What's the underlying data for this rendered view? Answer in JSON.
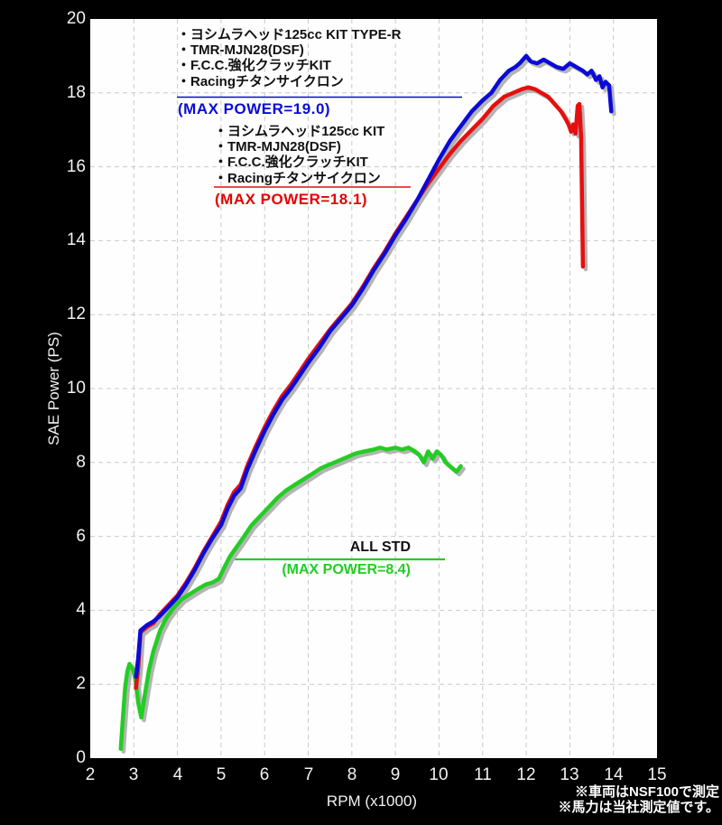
{
  "colors": {
    "background": "#000000",
    "plot_background": "#fefefe",
    "grid": "#c9c9c9",
    "shadow": "#b4b4b4",
    "blue": "#0a0ad7",
    "red": "#e60f0f",
    "green": "#23cd23",
    "tick_text": "#f2f2f2",
    "legend_text": "#111111"
  },
  "axes": {
    "x_title": "RPM (x1000)",
    "y_title": "SAE Power (PS)"
  },
  "legend_type_r": {
    "lines": [
      "・ヨシムラヘッド125cc KIT TYPE-R",
      "・TMR-MJN28(DSF)",
      "・F.C.C.強化クラッチKIT",
      "・Racingチタンサイクロン"
    ],
    "max_label": "(MAX POWER=19.0)"
  },
  "legend_kit": {
    "lines": [
      "・ヨシムラヘッド125cc KIT",
      "・TMR-MJN28(DSF)",
      "・F.C.C.強化クラッチKIT",
      "・Racingチタンサイクロン"
    ],
    "max_label": "(MAX POWER=18.1)"
  },
  "legend_std": {
    "title": "ALL STD",
    "max_label": "(MAX POWER=8.4)"
  },
  "notes": {
    "line1": "※車両はNSF100で測定",
    "line2": "※馬力は当社測定値です。"
  },
  "chart_data": {
    "type": "line",
    "xlabel": "RPM (x1000)",
    "ylabel": "SAE Power (PS)",
    "xlim": [
      2,
      15
    ],
    "ylim": [
      0,
      20
    ],
    "x_ticks": [
      2,
      3,
      4,
      5,
      6,
      7,
      8,
      9,
      10,
      11,
      12,
      13,
      14,
      15
    ],
    "y_ticks": [
      0,
      2,
      4,
      6,
      8,
      10,
      12,
      14,
      16,
      18,
      20
    ],
    "grid": "dashed",
    "legend_position": "inline-annotations",
    "series": [
      {
        "name": "ヨシムラヘッド125cc KIT TYPE-R / TMR-MJN28(DSF) / F.C.C.強化クラッチKIT / Racingチタンサイクロン",
        "color": "#0a0ad7",
        "max_power": 19.0,
        "points": [
          [
            3.05,
            2.2
          ],
          [
            3.1,
            2.7
          ],
          [
            3.15,
            3.45
          ],
          [
            3.3,
            3.6
          ],
          [
            3.45,
            3.7
          ],
          [
            3.6,
            3.85
          ],
          [
            3.8,
            4.1
          ],
          [
            4.0,
            4.35
          ],
          [
            4.2,
            4.7
          ],
          [
            4.4,
            5.1
          ],
          [
            4.6,
            5.55
          ],
          [
            4.8,
            5.95
          ],
          [
            5.0,
            6.3
          ],
          [
            5.15,
            6.75
          ],
          [
            5.3,
            7.1
          ],
          [
            5.45,
            7.3
          ],
          [
            5.6,
            7.8
          ],
          [
            5.8,
            8.35
          ],
          [
            6.0,
            8.85
          ],
          [
            6.2,
            9.3
          ],
          [
            6.4,
            9.7
          ],
          [
            6.6,
            10.0
          ],
          [
            6.8,
            10.35
          ],
          [
            7.0,
            10.7
          ],
          [
            7.25,
            11.1
          ],
          [
            7.5,
            11.55
          ],
          [
            7.75,
            11.9
          ],
          [
            8.0,
            12.25
          ],
          [
            8.25,
            12.7
          ],
          [
            8.5,
            13.2
          ],
          [
            8.75,
            13.65
          ],
          [
            9.0,
            14.15
          ],
          [
            9.25,
            14.6
          ],
          [
            9.5,
            15.1
          ],
          [
            9.75,
            15.65
          ],
          [
            10.0,
            16.2
          ],
          [
            10.25,
            16.7
          ],
          [
            10.5,
            17.1
          ],
          [
            10.75,
            17.5
          ],
          [
            11.0,
            17.8
          ],
          [
            11.2,
            18.0
          ],
          [
            11.4,
            18.35
          ],
          [
            11.6,
            18.6
          ],
          [
            11.75,
            18.7
          ],
          [
            11.85,
            18.8
          ],
          [
            12.0,
            19.0
          ],
          [
            12.1,
            18.85
          ],
          [
            12.25,
            18.8
          ],
          [
            12.4,
            18.9
          ],
          [
            12.55,
            18.8
          ],
          [
            12.7,
            18.7
          ],
          [
            12.85,
            18.65
          ],
          [
            13.0,
            18.8
          ],
          [
            13.15,
            18.7
          ],
          [
            13.3,
            18.6
          ],
          [
            13.4,
            18.5
          ],
          [
            13.5,
            18.6
          ],
          [
            13.6,
            18.35
          ],
          [
            13.68,
            18.45
          ],
          [
            13.75,
            18.15
          ],
          [
            13.82,
            18.3
          ],
          [
            13.9,
            18.2
          ],
          [
            13.95,
            17.5
          ]
        ]
      },
      {
        "name": "ヨシムラヘッド125cc KIT / TMR-MJN28(DSF) / F.C.C.強化クラッチKIT / Racingチタンサイクロン",
        "color": "#e60f0f",
        "max_power": 18.1,
        "points": [
          [
            3.05,
            1.9
          ],
          [
            3.1,
            2.45
          ],
          [
            3.15,
            3.4
          ],
          [
            3.3,
            3.55
          ],
          [
            3.45,
            3.65
          ],
          [
            3.6,
            3.9
          ],
          [
            3.8,
            4.15
          ],
          [
            4.0,
            4.4
          ],
          [
            4.2,
            4.75
          ],
          [
            4.4,
            5.15
          ],
          [
            4.6,
            5.6
          ],
          [
            4.8,
            6.0
          ],
          [
            5.0,
            6.4
          ],
          [
            5.15,
            6.85
          ],
          [
            5.3,
            7.2
          ],
          [
            5.45,
            7.4
          ],
          [
            5.6,
            7.9
          ],
          [
            5.8,
            8.45
          ],
          [
            6.0,
            8.95
          ],
          [
            6.2,
            9.4
          ],
          [
            6.4,
            9.8
          ],
          [
            6.6,
            10.1
          ],
          [
            6.8,
            10.45
          ],
          [
            7.0,
            10.8
          ],
          [
            7.25,
            11.2
          ],
          [
            7.5,
            11.6
          ],
          [
            7.75,
            11.95
          ],
          [
            8.0,
            12.3
          ],
          [
            8.25,
            12.75
          ],
          [
            8.5,
            13.25
          ],
          [
            8.75,
            13.7
          ],
          [
            9.0,
            14.2
          ],
          [
            9.25,
            14.65
          ],
          [
            9.5,
            15.1
          ],
          [
            9.75,
            15.55
          ],
          [
            10.0,
            15.95
          ],
          [
            10.25,
            16.35
          ],
          [
            10.5,
            16.7
          ],
          [
            10.75,
            17.0
          ],
          [
            11.0,
            17.3
          ],
          [
            11.25,
            17.65
          ],
          [
            11.5,
            17.9
          ],
          [
            11.7,
            18.0
          ],
          [
            11.9,
            18.1
          ],
          [
            12.05,
            18.15
          ],
          [
            12.2,
            18.1
          ],
          [
            12.35,
            18.0
          ],
          [
            12.5,
            17.9
          ],
          [
            12.65,
            17.7
          ],
          [
            12.8,
            17.5
          ],
          [
            12.9,
            17.3
          ],
          [
            12.97,
            17.15
          ],
          [
            13.03,
            16.95
          ],
          [
            13.08,
            17.15
          ],
          [
            13.13,
            16.9
          ],
          [
            13.18,
            17.65
          ],
          [
            13.22,
            17.7
          ],
          [
            13.26,
            16.8
          ],
          [
            13.3,
            13.3
          ]
        ]
      },
      {
        "name": "ALL STD",
        "color": "#23cd23",
        "max_power": 8.4,
        "points": [
          [
            2.7,
            0.25
          ],
          [
            2.75,
            1.1
          ],
          [
            2.8,
            1.9
          ],
          [
            2.85,
            2.35
          ],
          [
            2.9,
            2.55
          ],
          [
            3.0,
            2.35
          ],
          [
            3.05,
            2.0
          ],
          [
            3.1,
            1.5
          ],
          [
            3.17,
            1.1
          ],
          [
            3.25,
            1.7
          ],
          [
            3.35,
            2.4
          ],
          [
            3.45,
            2.9
          ],
          [
            3.6,
            3.45
          ],
          [
            3.75,
            3.8
          ],
          [
            3.9,
            4.05
          ],
          [
            4.1,
            4.3
          ],
          [
            4.3,
            4.45
          ],
          [
            4.5,
            4.6
          ],
          [
            4.65,
            4.7
          ],
          [
            4.8,
            4.75
          ],
          [
            4.95,
            4.85
          ],
          [
            5.05,
            5.1
          ],
          [
            5.2,
            5.45
          ],
          [
            5.35,
            5.7
          ],
          [
            5.5,
            5.95
          ],
          [
            5.7,
            6.3
          ],
          [
            5.9,
            6.55
          ],
          [
            6.1,
            6.8
          ],
          [
            6.3,
            7.05
          ],
          [
            6.5,
            7.25
          ],
          [
            6.7,
            7.4
          ],
          [
            6.9,
            7.55
          ],
          [
            7.1,
            7.7
          ],
          [
            7.3,
            7.85
          ],
          [
            7.5,
            7.95
          ],
          [
            7.7,
            8.05
          ],
          [
            7.9,
            8.15
          ],
          [
            8.1,
            8.25
          ],
          [
            8.3,
            8.3
          ],
          [
            8.5,
            8.35
          ],
          [
            8.65,
            8.4
          ],
          [
            8.8,
            8.35
          ],
          [
            9.0,
            8.4
          ],
          [
            9.15,
            8.35
          ],
          [
            9.3,
            8.4
          ],
          [
            9.45,
            8.3
          ],
          [
            9.55,
            8.2
          ],
          [
            9.65,
            8.0
          ],
          [
            9.75,
            8.3
          ],
          [
            9.85,
            8.1
          ],
          [
            9.95,
            8.3
          ],
          [
            10.05,
            8.2
          ],
          [
            10.15,
            8.0
          ],
          [
            10.3,
            7.85
          ],
          [
            10.4,
            7.75
          ],
          [
            10.5,
            7.9
          ]
        ]
      }
    ]
  }
}
